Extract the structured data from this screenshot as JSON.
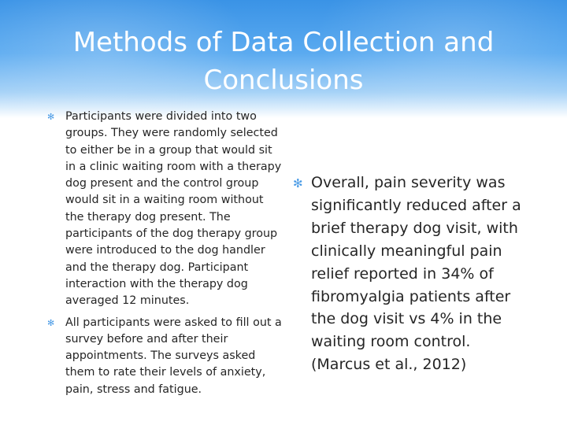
{
  "slide": {
    "title": "Methods of Data Collection and Conclusions",
    "bullet_icon": "asterisk-bullet-icon",
    "accent_color": "#4a9be6",
    "left_bullets": [
      "Participants were divided into two groups. They were randomly selected to either be in a group that would sit in a clinic waiting room with a therapy dog present and the control group would sit in a waiting room without the therapy dog present. The participants of the dog therapy group were introduced to the dog handler and the therapy dog. Participant interaction with the therapy dog averaged 12 minutes.",
      "All participants were asked to fill out a survey before and after their appointments. The surveys asked them to rate their levels of anxiety, pain, stress and fatigue."
    ],
    "right_bullets": [
      "Overall, pain severity was significantly reduced after a brief therapy dog visit, with clinically meaningful pain relief reported in 34% of fibromyalgia patients after the dog visit vs 4% in the waiting room control. (Marcus et al., 2012)"
    ]
  }
}
